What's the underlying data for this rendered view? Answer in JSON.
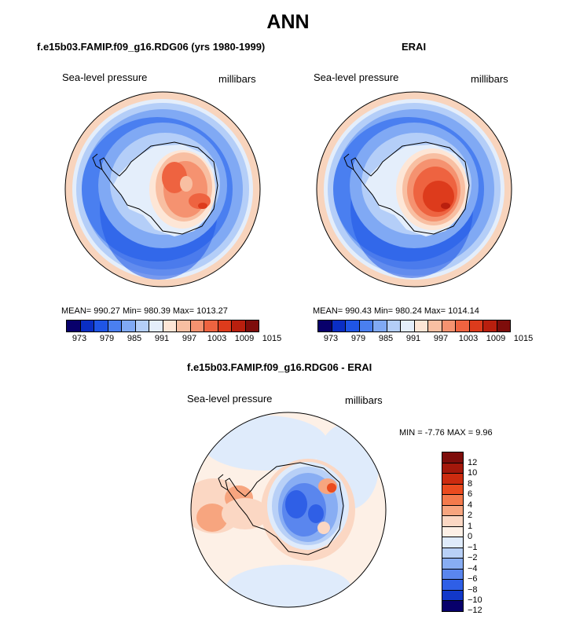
{
  "title": "ANN",
  "panels": [
    {
      "case": "f.e15b03.FAMIP.f09_g16.RDG06 (yrs 1980-1999)",
      "variable": "Sea-level pressure",
      "units": "millibars",
      "stats": "MEAN= 990.27   Min= 980.39   Max= 1013.27",
      "colorbar_ticks": [
        "973",
        "979",
        "985",
        "991",
        "997",
        "1003",
        "1009",
        "1015"
      ]
    },
    {
      "case": "ERAI",
      "variable": "Sea-level pressure",
      "units": "millibars",
      "stats": "MEAN= 990.43   Min= 980.24   Max= 1014.14",
      "colorbar_ticks": [
        "973",
        "979",
        "985",
        "991",
        "997",
        "1003",
        "1009",
        "1015"
      ]
    }
  ],
  "diff": {
    "case": "f.e15b03.FAMIP.f09_g16.RDG06 - ERAI",
    "variable": "Sea-level pressure",
    "units": "millibars",
    "stats": "MIN =   -7.76 MAX =    9.96",
    "colorbar_labels": [
      "12",
      "10",
      "8",
      "6",
      "4",
      "2",
      "1",
      "0",
      "−1",
      "−2",
      "−4",
      "−6",
      "−8",
      "−10",
      "−12"
    ]
  },
  "colors": {
    "abs_scale": [
      "#08006b",
      "#0a2ec4",
      "#1f55e6",
      "#4a7ff0",
      "#80a9f4",
      "#b4cef8",
      "#e4eefb",
      "#fde6d6",
      "#f8bfa2",
      "#f59270",
      "#ee6340",
      "#dd3b1c",
      "#b91f0e",
      "#7e0d0b"
    ],
    "diff_scale": [
      "#7e0d0b",
      "#a4180b",
      "#cc2b0f",
      "#ea4b1f",
      "#f37a4c",
      "#f7a57f",
      "#fbd7c3",
      "#fdf0e6",
      "#dfebfb",
      "#b8d0f7",
      "#88adf3",
      "#5a86ee",
      "#2f5fe6",
      "#1238c9",
      "#08006b"
    ]
  }
}
